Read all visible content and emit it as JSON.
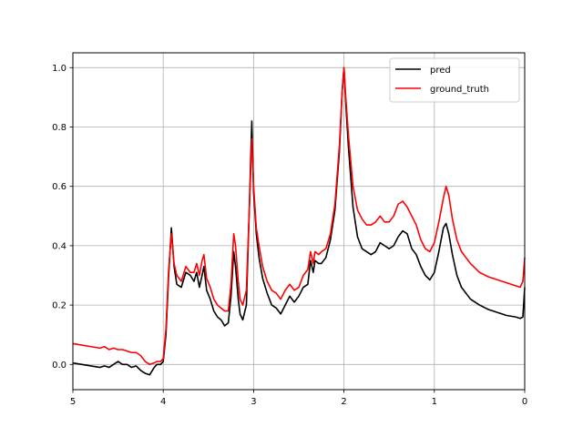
{
  "chart_data": {
    "type": "line",
    "xlim": [
      5,
      0
    ],
    "x_reversed": true,
    "ylim": [
      -0.085,
      1.05
    ],
    "grid": true,
    "legend_position": "top-right",
    "xticks": [
      5,
      4,
      3,
      2,
      1,
      0
    ],
    "xtick_labels": [
      "5",
      "4",
      "3",
      "2",
      "1",
      "0"
    ],
    "yticks": [
      0.0,
      0.2,
      0.4,
      0.6,
      0.8,
      1.0
    ],
    "ytick_labels": [
      "0.0",
      "0.2",
      "0.4",
      "0.6",
      "0.8",
      "1.0"
    ],
    "series": [
      {
        "name": "pred",
        "color": "#000000",
        "points": [
          [
            5.0,
            0.005
          ],
          [
            4.9,
            0.0
          ],
          [
            4.8,
            -0.005
          ],
          [
            4.7,
            -0.01
          ],
          [
            4.65,
            -0.005
          ],
          [
            4.6,
            -0.01
          ],
          [
            4.55,
            0.0
          ],
          [
            4.5,
            0.01
          ],
          [
            4.45,
            0.0
          ],
          [
            4.4,
            0.0
          ],
          [
            4.35,
            -0.01
          ],
          [
            4.3,
            -0.005
          ],
          [
            4.25,
            -0.02
          ],
          [
            4.2,
            -0.03
          ],
          [
            4.15,
            -0.035
          ],
          [
            4.1,
            -0.01
          ],
          [
            4.07,
            0.0
          ],
          [
            4.03,
            0.0
          ],
          [
            4.0,
            0.01
          ],
          [
            3.97,
            0.1
          ],
          [
            3.94,
            0.3
          ],
          [
            3.91,
            0.46
          ],
          [
            3.88,
            0.33
          ],
          [
            3.85,
            0.27
          ],
          [
            3.8,
            0.26
          ],
          [
            3.75,
            0.31
          ],
          [
            3.7,
            0.3
          ],
          [
            3.66,
            0.28
          ],
          [
            3.63,
            0.31
          ],
          [
            3.6,
            0.26
          ],
          [
            3.57,
            0.3
          ],
          [
            3.55,
            0.33
          ],
          [
            3.52,
            0.25
          ],
          [
            3.48,
            0.22
          ],
          [
            3.44,
            0.18
          ],
          [
            3.4,
            0.16
          ],
          [
            3.36,
            0.15
          ],
          [
            3.32,
            0.13
          ],
          [
            3.28,
            0.14
          ],
          [
            3.25,
            0.23
          ],
          [
            3.22,
            0.38
          ],
          [
            3.2,
            0.33
          ],
          [
            3.17,
            0.22
          ],
          [
            3.15,
            0.17
          ],
          [
            3.12,
            0.15
          ],
          [
            3.08,
            0.2
          ],
          [
            3.05,
            0.5
          ],
          [
            3.02,
            0.82
          ],
          [
            3.0,
            0.58
          ],
          [
            2.97,
            0.44
          ],
          [
            2.94,
            0.36
          ],
          [
            2.9,
            0.29
          ],
          [
            2.85,
            0.24
          ],
          [
            2.8,
            0.2
          ],
          [
            2.75,
            0.19
          ],
          [
            2.7,
            0.17
          ],
          [
            2.65,
            0.2
          ],
          [
            2.6,
            0.23
          ],
          [
            2.55,
            0.21
          ],
          [
            2.5,
            0.23
          ],
          [
            2.45,
            0.26
          ],
          [
            2.4,
            0.27
          ],
          [
            2.37,
            0.35
          ],
          [
            2.34,
            0.31
          ],
          [
            2.32,
            0.35
          ],
          [
            2.28,
            0.34
          ],
          [
            2.25,
            0.34
          ],
          [
            2.2,
            0.36
          ],
          [
            2.15,
            0.42
          ],
          [
            2.1,
            0.52
          ],
          [
            2.05,
            0.72
          ],
          [
            2.02,
            0.92
          ],
          [
            2.0,
            1.0
          ],
          [
            1.98,
            0.88
          ],
          [
            1.95,
            0.73
          ],
          [
            1.9,
            0.53
          ],
          [
            1.85,
            0.43
          ],
          [
            1.8,
            0.39
          ],
          [
            1.75,
            0.38
          ],
          [
            1.7,
            0.37
          ],
          [
            1.65,
            0.38
          ],
          [
            1.6,
            0.41
          ],
          [
            1.55,
            0.4
          ],
          [
            1.5,
            0.39
          ],
          [
            1.45,
            0.4
          ],
          [
            1.4,
            0.43
          ],
          [
            1.35,
            0.45
          ],
          [
            1.3,
            0.44
          ],
          [
            1.25,
            0.39
          ],
          [
            1.2,
            0.37
          ],
          [
            1.15,
            0.33
          ],
          [
            1.1,
            0.3
          ],
          [
            1.05,
            0.285
          ],
          [
            1.0,
            0.31
          ],
          [
            0.95,
            0.38
          ],
          [
            0.9,
            0.46
          ],
          [
            0.87,
            0.475
          ],
          [
            0.84,
            0.44
          ],
          [
            0.8,
            0.37
          ],
          [
            0.75,
            0.3
          ],
          [
            0.7,
            0.26
          ],
          [
            0.6,
            0.22
          ],
          [
            0.5,
            0.2
          ],
          [
            0.4,
            0.185
          ],
          [
            0.3,
            0.175
          ],
          [
            0.2,
            0.165
          ],
          [
            0.1,
            0.16
          ],
          [
            0.05,
            0.155
          ],
          [
            0.02,
            0.16
          ],
          [
            0.0,
            0.26
          ]
        ]
      },
      {
        "name": "ground_truth",
        "color": "#ff0000",
        "points": [
          [
            5.0,
            0.07
          ],
          [
            4.9,
            0.065
          ],
          [
            4.8,
            0.06
          ],
          [
            4.7,
            0.055
          ],
          [
            4.65,
            0.06
          ],
          [
            4.6,
            0.05
          ],
          [
            4.55,
            0.055
          ],
          [
            4.5,
            0.05
          ],
          [
            4.45,
            0.05
          ],
          [
            4.4,
            0.045
          ],
          [
            4.35,
            0.04
          ],
          [
            4.3,
            0.04
          ],
          [
            4.25,
            0.03
          ],
          [
            4.2,
            0.01
          ],
          [
            4.15,
            0.0
          ],
          [
            4.1,
            0.005
          ],
          [
            4.07,
            0.01
          ],
          [
            4.03,
            0.01
          ],
          [
            4.0,
            0.02
          ],
          [
            3.97,
            0.12
          ],
          [
            3.94,
            0.32
          ],
          [
            3.91,
            0.44
          ],
          [
            3.88,
            0.34
          ],
          [
            3.85,
            0.3
          ],
          [
            3.8,
            0.28
          ],
          [
            3.75,
            0.33
          ],
          [
            3.7,
            0.31
          ],
          [
            3.66,
            0.31
          ],
          [
            3.63,
            0.34
          ],
          [
            3.6,
            0.3
          ],
          [
            3.57,
            0.35
          ],
          [
            3.55,
            0.37
          ],
          [
            3.52,
            0.29
          ],
          [
            3.48,
            0.26
          ],
          [
            3.44,
            0.22
          ],
          [
            3.4,
            0.2
          ],
          [
            3.36,
            0.19
          ],
          [
            3.32,
            0.18
          ],
          [
            3.28,
            0.18
          ],
          [
            3.25,
            0.27
          ],
          [
            3.22,
            0.44
          ],
          [
            3.2,
            0.4
          ],
          [
            3.17,
            0.28
          ],
          [
            3.15,
            0.22
          ],
          [
            3.12,
            0.2
          ],
          [
            3.08,
            0.25
          ],
          [
            3.05,
            0.5
          ],
          [
            3.02,
            0.76
          ],
          [
            3.0,
            0.6
          ],
          [
            2.97,
            0.46
          ],
          [
            2.94,
            0.4
          ],
          [
            2.9,
            0.33
          ],
          [
            2.85,
            0.28
          ],
          [
            2.8,
            0.25
          ],
          [
            2.75,
            0.24
          ],
          [
            2.7,
            0.22
          ],
          [
            2.65,
            0.25
          ],
          [
            2.6,
            0.27
          ],
          [
            2.55,
            0.25
          ],
          [
            2.5,
            0.26
          ],
          [
            2.45,
            0.3
          ],
          [
            2.4,
            0.32
          ],
          [
            2.37,
            0.38
          ],
          [
            2.34,
            0.34
          ],
          [
            2.32,
            0.38
          ],
          [
            2.28,
            0.37
          ],
          [
            2.25,
            0.38
          ],
          [
            2.2,
            0.39
          ],
          [
            2.15,
            0.44
          ],
          [
            2.1,
            0.54
          ],
          [
            2.05,
            0.74
          ],
          [
            2.02,
            0.92
          ],
          [
            2.0,
            1.0
          ],
          [
            1.98,
            0.9
          ],
          [
            1.95,
            0.77
          ],
          [
            1.9,
            0.6
          ],
          [
            1.85,
            0.52
          ],
          [
            1.8,
            0.49
          ],
          [
            1.75,
            0.47
          ],
          [
            1.7,
            0.47
          ],
          [
            1.65,
            0.48
          ],
          [
            1.6,
            0.5
          ],
          [
            1.55,
            0.48
          ],
          [
            1.5,
            0.48
          ],
          [
            1.45,
            0.5
          ],
          [
            1.4,
            0.54
          ],
          [
            1.35,
            0.55
          ],
          [
            1.3,
            0.53
          ],
          [
            1.25,
            0.5
          ],
          [
            1.2,
            0.47
          ],
          [
            1.15,
            0.42
          ],
          [
            1.1,
            0.39
          ],
          [
            1.05,
            0.38
          ],
          [
            1.0,
            0.41
          ],
          [
            0.95,
            0.48
          ],
          [
            0.9,
            0.56
          ],
          [
            0.87,
            0.6
          ],
          [
            0.84,
            0.57
          ],
          [
            0.8,
            0.49
          ],
          [
            0.75,
            0.42
          ],
          [
            0.7,
            0.38
          ],
          [
            0.6,
            0.34
          ],
          [
            0.5,
            0.31
          ],
          [
            0.4,
            0.295
          ],
          [
            0.3,
            0.285
          ],
          [
            0.2,
            0.275
          ],
          [
            0.1,
            0.265
          ],
          [
            0.05,
            0.26
          ],
          [
            0.02,
            0.28
          ],
          [
            0.0,
            0.36
          ]
        ]
      }
    ]
  }
}
